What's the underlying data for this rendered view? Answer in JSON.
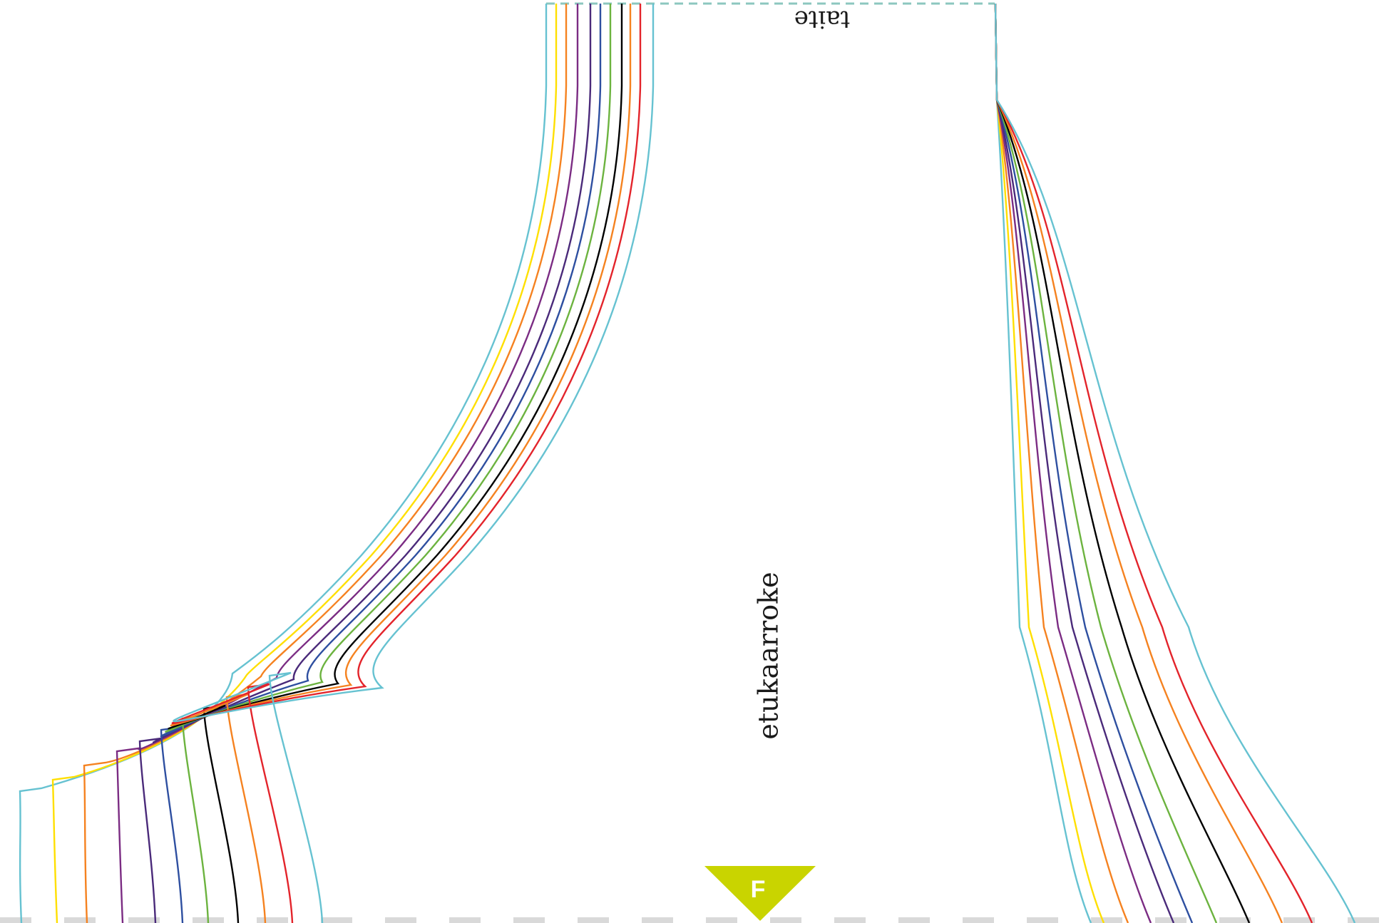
{
  "labels": {
    "top_fold": "taite",
    "piece_name": "etukaarroke",
    "notch_marker": "F"
  },
  "colors": {
    "background": "#ffffff",
    "marker": "#c9d400",
    "fold_line": "#8cc7bf",
    "page_edge": "#d9d9d9",
    "size_lines": [
      "#66c2d1",
      "#ffdf00",
      "#f58220",
      "#7b2c83",
      "#4a2a7a",
      "#2e4fa0",
      "#6cb33f",
      "#000000",
      "#f58220",
      "#e3242b",
      "#66c2d1"
    ]
  }
}
